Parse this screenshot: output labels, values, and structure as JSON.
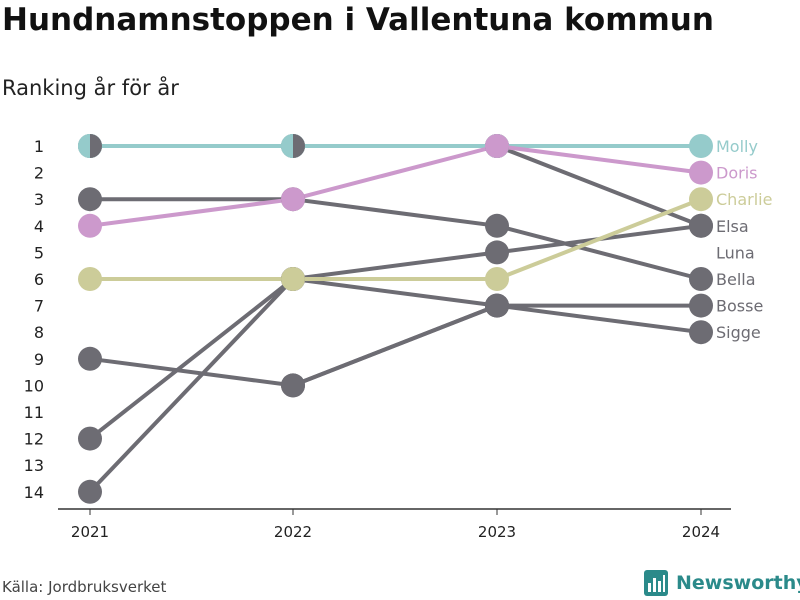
{
  "header": {
    "title": "Hundnamnstoppen i Vallentuna kommun",
    "subtitle": "Ranking år för år"
  },
  "footer": {
    "source": "Källa: Jordbruksverket",
    "brand_name": "Newsworthy",
    "brand_icon": "bar-chart-logo-icon"
  },
  "colors": {
    "molly": "#95cbcb",
    "doris": "#cc99cc",
    "charlie": "#cccc99",
    "gray": "#6d6c73"
  },
  "chart_data": {
    "type": "line",
    "x": [
      "2021",
      "2022",
      "2023",
      "2024"
    ],
    "y_ticks": [
      "1",
      "2",
      "3",
      "4",
      "5",
      "6",
      "7",
      "8",
      "9",
      "10",
      "11",
      "12",
      "13",
      "14"
    ],
    "y_range": [
      1,
      14
    ],
    "y_inverted": true,
    "grid": false,
    "legend": "right-labels",
    "series": [
      {
        "name": "Molly",
        "color": "#95cbcb",
        "values": [
          1,
          1,
          1,
          1
        ]
      },
      {
        "name": "Doris",
        "color": "#cc99cc",
        "values": [
          4,
          3,
          1,
          2
        ]
      },
      {
        "name": "Charlie",
        "color": "#cccc99",
        "values": [
          6,
          6,
          6,
          3
        ]
      },
      {
        "name": "Elsa",
        "color": "#6d6c73",
        "values": [
          12,
          6,
          5,
          4
        ]
      },
      {
        "name": "Luna",
        "color": "#6d6c73",
        "values": [
          1,
          1,
          1,
          null
        ]
      },
      {
        "name": "Bella",
        "color": "#6d6c73",
        "values": [
          3,
          3,
          4,
          6
        ]
      },
      {
        "name": "Bosse",
        "color": "#6d6c73",
        "values": [
          14,
          6,
          7,
          7
        ]
      },
      {
        "name": "Sigge",
        "color": "#6d6c73",
        "values": [
          9,
          10,
          7,
          8
        ]
      },
      {
        "name": "",
        "color": "#6d6c73",
        "values": [
          null,
          null,
          1,
          4
        ]
      },
      {
        "name": "",
        "color": "#6d6c73",
        "values": [
          null,
          10,
          7,
          null
        ]
      }
    ]
  }
}
